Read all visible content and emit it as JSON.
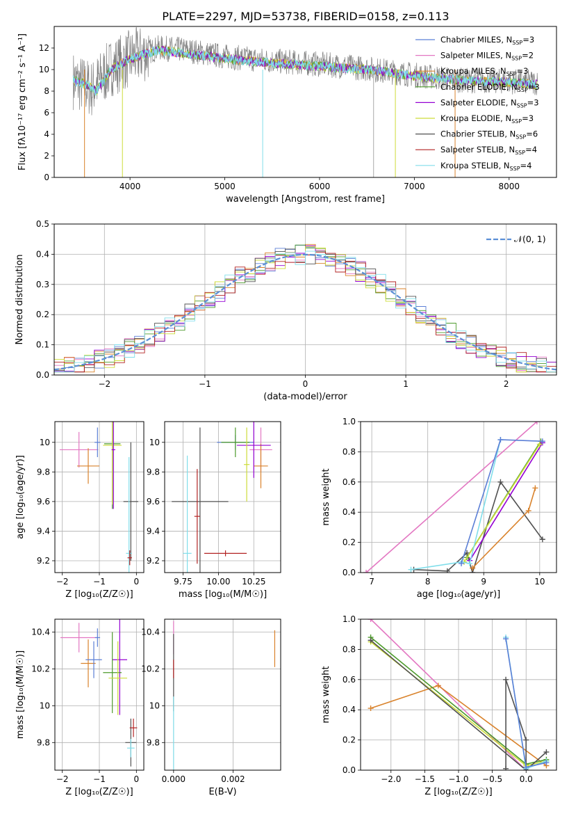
{
  "title": "PLATE=2297, MJD=53738, FIBERID=0158, z=0.113",
  "colors": {
    "chabrier_miles": "#5b7fd6",
    "salpeter_miles": "#e377c2",
    "kroupa_miles": "#d9822b",
    "chabrier_elodie": "#4c9a2a",
    "salpeter_elodie": "#9400d3",
    "kroupa_elodie": "#cddc39",
    "chabrier_stelib": "#505050",
    "salpeter_stelib": "#b22222",
    "kroupa_stelib": "#80deea",
    "normal_curve": "#5b8fd6",
    "grid": "#b0b0b0"
  },
  "chart_data": [
    {
      "id": "spectrum",
      "type": "line",
      "xlabel": "wavelength [Angstrom, rest frame]",
      "ylabel": "Flux [fλ10⁻¹⁷ erg cm⁻² s⁻¹ A⁻¹]",
      "xlim": [
        3200,
        8500
      ],
      "ylim": [
        0,
        14
      ],
      "xticks": [
        4000,
        5000,
        6000,
        7000,
        8000
      ],
      "yticks": [
        0,
        2,
        4,
        6,
        8,
        10,
        12
      ],
      "grid": false,
      "legend_position": "top-right",
      "legend": [
        "Chabrier MILES, N_SSP=3",
        "Salpeter MILES, N_SSP=2",
        "Kroupa MILES, N_SSP=3",
        "Chabrier ELODIE, N_SSP=3",
        "Salpeter ELODIE, N_SSP=3",
        "Kroupa ELODIE, N_SSP=3",
        "Chabrier STELIB, N_SSP=6",
        "Salpeter STELIB, N_SSP=4",
        "Kroupa STELIB, N_SSP=4"
      ],
      "data_envelope": {
        "x": [
          3400,
          3600,
          3800,
          4000,
          4300,
          4600,
          5000,
          5500,
          6000,
          6500,
          7000,
          7500,
          8000,
          8300
        ],
        "y": [
          9.0,
          8.2,
          10.2,
          11.0,
          12.0,
          11.8,
          11.2,
          10.8,
          10.5,
          10.1,
          9.5,
          9.0,
          8.9,
          8.8
        ]
      },
      "model_continuum": {
        "x": [
          3400,
          3550,
          3650,
          3800,
          4000,
          4300,
          4600,
          5000,
          5500,
          6000,
          6500,
          7000,
          7500,
          8000,
          8300
        ],
        "y": [
          9.0,
          8.6,
          8.0,
          10.0,
          11.0,
          11.8,
          11.5,
          11.0,
          10.6,
          10.3,
          10.0,
          9.4,
          9.0,
          8.8,
          8.6
        ]
      }
    },
    {
      "id": "residual_histogram",
      "type": "line",
      "xlabel": "(data-model)/error",
      "ylabel": "Normed distribution",
      "xlim": [
        -2.5,
        2.5
      ],
      "ylim": [
        0,
        0.5
      ],
      "xticks": [
        -2,
        -1,
        0,
        1,
        2
      ],
      "yticks": [
        0.0,
        0.1,
        0.2,
        0.3,
        0.4,
        0.5
      ],
      "grid": true,
      "legend_position": "top-right",
      "legend": [
        "𝒩(0, 1)"
      ],
      "bin_width": 0.1,
      "bin_start": -2.5,
      "series_histogram": [
        {
          "values": [
            0.03,
            0.04,
            0.05,
            0.06,
            0.07,
            0.08,
            0.1,
            0.09,
            0.12,
            0.11,
            0.13,
            0.15,
            0.17,
            0.19,
            0.2,
            0.22,
            0.22,
            0.24,
            0.27,
            0.3,
            0.28,
            0.33,
            0.31,
            0.35,
            0.36,
            0.38,
            0.4,
            0.41,
            0.37,
            0.43,
            0.45,
            0.4,
            0.41,
            0.38,
            0.4,
            0.37,
            0.35,
            0.36,
            0.33,
            0.3,
            0.31,
            0.29,
            0.27,
            0.29,
            0.26,
            0.22,
            0.24,
            0.21,
            0.19,
            0.2
          ]
        },
        {
          "values": [
            0.04,
            0.03,
            0.05,
            0.05,
            0.08,
            0.06,
            0.09,
            0.08,
            0.1,
            0.1,
            0.14,
            0.13,
            0.18,
            0.17,
            0.22,
            0.2,
            0.24,
            0.22,
            0.28,
            0.31,
            0.26,
            0.35,
            0.3,
            0.34,
            0.38,
            0.36,
            0.42,
            0.39,
            0.4,
            0.44,
            0.46,
            0.37,
            0.43,
            0.39,
            0.41,
            0.35,
            0.37,
            0.34,
            0.3,
            0.32,
            0.28,
            0.3,
            0.25,
            0.28,
            0.23,
            0.2,
            0.21,
            0.19,
            0.17,
            0.18
          ]
        }
      ],
      "normal_curve": {
        "mean": 0,
        "sigma": 1
      }
    },
    {
      "id": "age_vs_Z",
      "type": "scatter",
      "xlabel": "Z [log₁₀(Z/Z☉)]",
      "ylabel": "age  [log₁₀(age/yr)]",
      "xlim": [
        -2.2,
        0.2
      ],
      "ylim": [
        9.12,
        10.14
      ],
      "xticks": [
        -2,
        -1,
        0
      ],
      "yticks": [
        9.2,
        9.4,
        9.6,
        9.8,
        10.0
      ],
      "grid": true,
      "points": [
        {
          "series": "salpeter_miles",
          "x": -1.55,
          "xerr": 0.52,
          "y": 9.95,
          "yerr": 0.12
        },
        {
          "series": "kroupa_miles",
          "x": -1.3,
          "xerr": 0.3,
          "y": 9.84,
          "yerr": 0.12
        },
        {
          "series": "chabrier_miles",
          "x": -1.05,
          "xerr": 0.08,
          "y": 10.0,
          "yerr": 0.1
        },
        {
          "series": "chabrier_elodie",
          "x": -0.65,
          "xerr": 0.22,
          "y": 9.99,
          "yerr": 0.44
        },
        {
          "series": "kroupa_elodie",
          "x": -0.65,
          "xerr": 0.25,
          "y": 9.98,
          "yerr": 0.4
        },
        {
          "series": "salpeter_elodie",
          "x": -0.62,
          "xerr": 0.05,
          "y": 9.95,
          "yerr": 0.4
        },
        {
          "series": "chabrier_stelib",
          "x": -0.15,
          "xerr": 0.2,
          "y": 9.6,
          "yerr": 0.4
        },
        {
          "series": "kroupa_stelib",
          "x": -0.2,
          "xerr": 0.08,
          "y": 9.25,
          "yerr": 0.65
        },
        {
          "series": "salpeter_stelib",
          "x": -0.18,
          "xerr": 0.06,
          "y": 9.22,
          "yerr": 0.05
        }
      ]
    },
    {
      "id": "age_vs_mass",
      "type": "scatter",
      "xlabel": "mass [log₁₀(M/M☉)]",
      "ylabel": "",
      "xlim": [
        9.62,
        10.44
      ],
      "ylim": [
        9.12,
        10.14
      ],
      "xticks": [
        9.75,
        10.0,
        10.25
      ],
      "xticklabels": [
        "9.75",
        "10.00",
        "10.25"
      ],
      "yticks": [
        9.2,
        9.4,
        9.6,
        9.8,
        10.0
      ],
      "grid": true,
      "points": [
        {
          "series": "chabrier_stelib",
          "x": 9.87,
          "xerr": 0.2,
          "y": 9.6,
          "yerr": 0.5
        },
        {
          "series": "salpeter_stelib",
          "x": 9.85,
          "xerr": 0.02,
          "y": 9.5,
          "yerr": 0.32
        },
        {
          "series": "kroupa_stelib",
          "x": 9.78,
          "xerr": 0.03,
          "y": 9.25,
          "yerr": 0.66
        },
        {
          "series": "salpeter_stelib",
          "x": 10.05,
          "xerr": 0.15,
          "y": 9.25,
          "yerr": 0.02
        },
        {
          "series": "salpeter_miles",
          "x": 10.3,
          "xerr": 0.08,
          "y": 9.95,
          "yerr": 0.15
        },
        {
          "series": "kroupa_miles",
          "x": 10.3,
          "xerr": 0.05,
          "y": 9.84,
          "yerr": 0.15
        },
        {
          "series": "chabrier_miles",
          "x": 10.12,
          "xerr": 0.13,
          "y": 10.0,
          "yerr": 0.05
        },
        {
          "series": "salpeter_elodie",
          "x": 10.25,
          "xerr": 0.12,
          "y": 9.98,
          "yerr": 0.22
        },
        {
          "series": "chabrier_elodie",
          "x": 10.12,
          "xerr": 0.1,
          "y": 10.0,
          "yerr": 0.1
        },
        {
          "series": "kroupa_elodie",
          "x": 10.2,
          "xerr": 0.02,
          "y": 9.85,
          "yerr": 0.25
        }
      ]
    },
    {
      "id": "weight_vs_age",
      "type": "line",
      "xlabel": "age  [log₁₀(age/yr)]",
      "ylabel": "mass weight",
      "xlim": [
        6.8,
        10.3
      ],
      "ylim": [
        0,
        1
      ],
      "xticks": [
        7,
        8,
        9,
        10
      ],
      "yticks": [
        0.0,
        0.2,
        0.4,
        0.6,
        0.8,
        1.0
      ],
      "grid": true,
      "series": [
        {
          "series": "salpeter_miles",
          "x": [
            6.9,
            9.95
          ],
          "y": [
            0.0,
            1.0
          ]
        },
        {
          "series": "chabrier_stelib",
          "x": [
            7.75,
            8.35,
            8.7,
            8.8,
            9.3,
            10.05
          ],
          "y": [
            0.02,
            0.01,
            0.13,
            0.0,
            0.6,
            0.22
          ]
        },
        {
          "series": "kroupa_miles",
          "x": [
            8.8,
            9.8,
            9.92
          ],
          "y": [
            0.03,
            0.41,
            0.56
          ]
        },
        {
          "series": "chabrier_elodie",
          "x": [
            8.7,
            10.02
          ],
          "y": [
            0.1,
            0.87
          ]
        },
        {
          "series": "salpeter_elodie",
          "x": [
            8.75,
            10.05
          ],
          "y": [
            0.08,
            0.86
          ]
        },
        {
          "series": "kroupa_elodie",
          "x": [
            8.65,
            10.0
          ],
          "y": [
            0.07,
            0.85
          ]
        },
        {
          "series": "kroupa_stelib",
          "x": [
            7.7,
            8.6,
            8.75,
            9.3
          ],
          "y": [
            0.02,
            0.07,
            0.06,
            0.88
          ]
        },
        {
          "series": "chabrier_miles",
          "x": [
            8.6,
            9.3,
            10.05
          ],
          "y": [
            0.06,
            0.88,
            0.87
          ]
        }
      ]
    },
    {
      "id": "mass_vs_Z",
      "type": "scatter",
      "xlabel": "Z [log₁₀(Z/Z☉)]",
      "ylabel": "mass [log₁₀(M/M☉)]",
      "xlim": [
        -2.2,
        0.2
      ],
      "ylim": [
        9.65,
        10.47
      ],
      "xticks": [
        -2,
        -1,
        0
      ],
      "yticks": [
        9.8,
        10.0,
        10.2,
        10.4
      ],
      "grid": true,
      "points": [
        {
          "series": "salpeter_miles",
          "x": -1.55,
          "xerr": 0.5,
          "y": 10.37,
          "yerr": 0.08
        },
        {
          "series": "chabrier_miles",
          "x": -1.05,
          "xerr": 0.07,
          "y": 10.37,
          "yerr": 0.05
        },
        {
          "series": "kroupa_miles",
          "x": -1.3,
          "xerr": 0.2,
          "y": 10.23,
          "yerr": 0.13
        },
        {
          "series": "chabrier_miles",
          "x": -1.15,
          "xerr": 0.22,
          "y": 10.25,
          "yerr": 0.1
        },
        {
          "series": "salpeter_elodie",
          "x": -0.45,
          "xerr": 0.2,
          "y": 10.25,
          "yerr": 0.3
        },
        {
          "series": "chabrier_elodie",
          "x": -0.65,
          "xerr": 0.25,
          "y": 10.18,
          "yerr": 0.22
        },
        {
          "series": "kroupa_elodie",
          "x": -0.5,
          "xerr": 0.25,
          "y": 10.15,
          "yerr": 0.2
        },
        {
          "series": "chabrier_stelib",
          "x": -0.15,
          "xerr": 0.15,
          "y": 9.8,
          "yerr": 0.13
        },
        {
          "series": "salpeter_stelib",
          "x": -0.08,
          "xerr": 0.1,
          "y": 9.88,
          "yerr": 0.05
        },
        {
          "series": "kroupa_stelib",
          "x": -0.15,
          "xerr": 0.1,
          "y": 9.77,
          "yerr": 0.05
        }
      ]
    },
    {
      "id": "mass_vs_ebv",
      "type": "scatter",
      "xlabel": "E(B-V)",
      "ylabel": "",
      "xlim": [
        -0.0003,
        0.0036
      ],
      "ylim": [
        9.65,
        10.47
      ],
      "xticks": [
        0.0,
        0.002
      ],
      "xticklabels": [
        "0.000",
        "0.002"
      ],
      "yticks": [
        9.8,
        10.0,
        10.2,
        10.4
      ],
      "grid": true,
      "points": [
        {
          "series": "salpeter_miles",
          "x": 0.0,
          "xerr": 0,
          "y": 10.37,
          "yerr": 0.09
        },
        {
          "series": "chabrier_stelib",
          "x": 0.0,
          "xerr": 0,
          "y": 10.18,
          "yerr": 0.21
        },
        {
          "series": "salpeter_stelib",
          "x": 0.0,
          "xerr": 0,
          "y": 10.2,
          "yerr": 0.05
        },
        {
          "series": "kroupa_stelib",
          "x": 0.0,
          "xerr": 0,
          "y": 9.85,
          "yerr": 0.2
        },
        {
          "series": "kroupa_miles",
          "x": 0.0034,
          "xerr": 0,
          "y": 10.31,
          "yerr": 0.1
        }
      ]
    },
    {
      "id": "weight_vs_Z",
      "type": "line",
      "xlabel": "Z [log₁₀(Z/Z☉)]",
      "ylabel": "mass weight",
      "xlim": [
        -2.45,
        0.45
      ],
      "ylim": [
        0,
        1
      ],
      "xticks": [
        -2.0,
        -1.5,
        -1.0,
        -0.5,
        0.0
      ],
      "xticklabels": [
        "−2.0",
        "−1.5",
        "−1.0",
        "−0.5",
        "0.0"
      ],
      "yticks": [
        0.0,
        0.2,
        0.4,
        0.6,
        0.8,
        1.0
      ],
      "grid": true,
      "series": [
        {
          "series": "salpeter_miles",
          "x": [
            -2.3,
            0.0
          ],
          "y": [
            1.0,
            0.0
          ]
        },
        {
          "series": "kroupa_miles",
          "x": [
            -2.3,
            -1.3,
            0.3
          ],
          "y": [
            0.41,
            0.56,
            0.03
          ]
        },
        {
          "series": "chabrier_elodie",
          "x": [
            -2.3,
            0.0,
            0.3
          ],
          "y": [
            0.88,
            0.04,
            0.07
          ]
        },
        {
          "series": "kroupa_elodie",
          "x": [
            -2.3,
            0.0,
            0.3
          ],
          "y": [
            0.85,
            0.03,
            0.06
          ]
        },
        {
          "series": "chabrier_stelib",
          "x": [
            -2.3,
            0.0,
            0.3
          ],
          "y": [
            0.86,
            0.0,
            0.12
          ]
        },
        {
          "series": "chabrier_stelib",
          "x": [
            -0.3,
            -0.3,
            0.0,
            0.0
          ],
          "y": [
            0.01,
            0.6,
            0.2,
            0.01
          ]
        },
        {
          "series": "kroupa_stelib",
          "x": [
            -0.3,
            0.0,
            0.3
          ],
          "y": [
            0.88,
            0.01,
            0.06
          ]
        },
        {
          "series": "chabrier_miles",
          "x": [
            -0.3,
            0.0,
            0.3
          ],
          "y": [
            0.87,
            0.02,
            0.05
          ]
        }
      ]
    }
  ]
}
